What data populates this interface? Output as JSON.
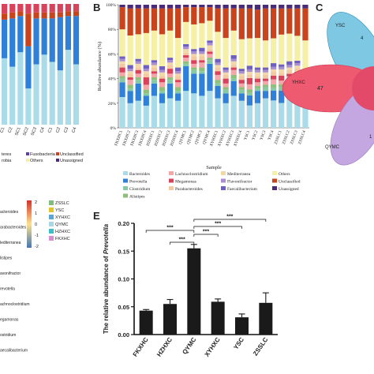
{
  "panels": {
    "b": "B",
    "c": "C",
    "e": "E"
  },
  "colors": {
    "bacteroides": "#a9dce8",
    "lachnoclostridium": "#f4a6a8",
    "mediterranea": "#f2d8a8",
    "others": "#f6f0a6",
    "prevotella": "#2f80d8",
    "megamonas": "#d9425a",
    "flavonifractor": "#a98fcf",
    "unclassified": "#c9441b",
    "clostridium": "#86c9a5",
    "parabacteroides": "#f5c9a0",
    "faecalibacterium": "#6f5fc0",
    "unassigned": "#4a2a7a",
    "alistipes": "#8ec07a",
    "fusobacteria": "#5f3fa8",
    "hm_red": "#d73027",
    "hm_yellow": "#fee08b",
    "hm_blue": "#4575b4",
    "venn_yhxc": "#ee5a6f",
    "venn_ysc": "#7ec8e3",
    "venn_qymc": "#c4a6e0",
    "venn_center": "#e34a6a",
    "bar_fill": "#1a1a1a"
  },
  "panel_a": {
    "legend": {
      "items": [
        {
          "label": "teres",
          "color_key": "fusobacteria"
        },
        {
          "label": "Fusobacteria",
          "color_key": "fusobacteria"
        },
        {
          "label": "Unclassified",
          "color_key": "unclassified"
        },
        {
          "label": "Others",
          "color_key": "others"
        },
        {
          "label": "Unassigned",
          "color_key": "unassigned"
        },
        {
          "label": "robia",
          "color_key": "fusobacteria"
        }
      ]
    },
    "x_labels": [
      "C1",
      "C2",
      "SC1",
      "SC2",
      "SC3",
      "C4",
      "C1",
      "C2",
      "C3",
      "C4"
    ],
    "heatmap": {
      "colorbar_ticks": [
        "2",
        "1",
        "0",
        "-1",
        "-2"
      ],
      "group_legend": [
        {
          "label": "ZSSLC",
          "color": "#7fbf7b"
        },
        {
          "label": "YSC",
          "color": "#e6c229"
        },
        {
          "label": "XYHXC",
          "color": "#5aa6d6"
        },
        {
          "label": "QYMC",
          "color": "#a8d8e8"
        },
        {
          "label": "HZHXC",
          "color": "#3bbfc7"
        },
        {
          "label": "FKXHC",
          "color": "#d98cd6"
        }
      ],
      "row_labels": [
        "acteroides",
        "arabacteroides",
        "lediterranea",
        "listipes",
        "avonifractor",
        "revotella",
        "achnoclostridium",
        "egamonas",
        "ostridium",
        "aecalibacterium"
      ]
    }
  },
  "chart_data": [
    {
      "type": "bar",
      "panel": "B",
      "stacked": true,
      "ylabel": "Relative abundance (%)",
      "xlabel": "Sample",
      "ylim": [
        0,
        100
      ],
      "y_ticks": [
        "0%",
        "20%",
        "40%",
        "60%",
        "80%",
        "100%"
      ],
      "categories": [
        "FKXHC1",
        "FKXHC2",
        "FKXHC3",
        "FKXHC4",
        "HZHXC1",
        "HZHXC2",
        "HZHXC3",
        "HZHXC4",
        "QYMC1",
        "QYMC2",
        "QYMC3",
        "QYMC4",
        "XYHXC1",
        "XYHXC2",
        "XYHXC3",
        "XYHXC4",
        "YSC1",
        "YSC2",
        "YSC3",
        "YSC4",
        "ZSSLC1",
        "ZSSLC2",
        "ZSSLC3",
        "ZSSLC4"
      ],
      "series": [
        {
          "name": "Bacteroides",
          "color_key": "bacteroides",
          "values": [
            25,
            20,
            22,
            18,
            26,
            20,
            24,
            22,
            30,
            28,
            26,
            30,
            24,
            20,
            26,
            22,
            18,
            20,
            24,
            22,
            20,
            24,
            22,
            20
          ]
        },
        {
          "name": "Prevotella",
          "color_key": "prevotella",
          "values": [
            12,
            10,
            14,
            8,
            10,
            8,
            12,
            6,
            20,
            16,
            18,
            22,
            10,
            8,
            12,
            6,
            8,
            10,
            6,
            8,
            10,
            8,
            12,
            6
          ]
        },
        {
          "name": "Clostridium",
          "color_key": "clostridium",
          "values": [
            3,
            2,
            3,
            2,
            3,
            2,
            3,
            2,
            2,
            3,
            2,
            3,
            2,
            3,
            2,
            3,
            2,
            2,
            3,
            2,
            3,
            2,
            3,
            2
          ]
        },
        {
          "name": "Alistipes",
          "color_key": "alistipes",
          "values": [
            2,
            3,
            2,
            3,
            2,
            3,
            2,
            3,
            2,
            2,
            3,
            2,
            3,
            2,
            3,
            2,
            3,
            2,
            2,
            3,
            2,
            3,
            2,
            3
          ]
        },
        {
          "name": "Lachnoclostridium",
          "color_key": "lachnoclostridium",
          "values": [
            3,
            4,
            3,
            4,
            3,
            4,
            3,
            4,
            3,
            3,
            4,
            3,
            4,
            3,
            4,
            3,
            4,
            3,
            3,
            4,
            3,
            4,
            3,
            4
          ]
        },
        {
          "name": "Megamonas",
          "color_key": "megamonas",
          "values": [
            4,
            2,
            3,
            6,
            2,
            3,
            4,
            2,
            2,
            3,
            2,
            2,
            3,
            4,
            2,
            3,
            5,
            3,
            2,
            3,
            4,
            2,
            3,
            2
          ]
        },
        {
          "name": "Parabacteroides",
          "color_key": "parabacteroides",
          "values": [
            3,
            3,
            2,
            3,
            3,
            2,
            3,
            3,
            2,
            3,
            3,
            2,
            3,
            3,
            2,
            3,
            3,
            2,
            3,
            3,
            2,
            3,
            3,
            2
          ]
        },
        {
          "name": "Mediterranea",
          "color_key": "mediterranea",
          "values": [
            2,
            2,
            3,
            2,
            2,
            3,
            2,
            2,
            3,
            2,
            2,
            3,
            2,
            2,
            3,
            2,
            2,
            3,
            2,
            2,
            3,
            2,
            2,
            3
          ]
        },
        {
          "name": "Flavonifractor",
          "color_key": "flavonifractor",
          "values": [
            2,
            2,
            2,
            2,
            2,
            2,
            2,
            2,
            2,
            2,
            2,
            2,
            2,
            2,
            2,
            2,
            2,
            2,
            2,
            2,
            2,
            2,
            2,
            2
          ]
        },
        {
          "name": "Faecalibacterium",
          "color_key": "faecalibacterium",
          "values": [
            2,
            3,
            2,
            3,
            2,
            3,
            2,
            3,
            2,
            2,
            3,
            2,
            3,
            2,
            3,
            2,
            3,
            2,
            2,
            3,
            2,
            3,
            2,
            3
          ]
        },
        {
          "name": "Others",
          "color_key": "others",
          "values": [
            22,
            24,
            20,
            26,
            24,
            26,
            22,
            24,
            18,
            20,
            20,
            16,
            22,
            24,
            20,
            24,
            22,
            24,
            22,
            20,
            24,
            22,
            20,
            24
          ]
        },
        {
          "name": "Unclassified",
          "color_key": "unclassified",
          "values": [
            18,
            22,
            21,
            20,
            18,
            21,
            18,
            24,
            12,
            14,
            13,
            11,
            19,
            24,
            18,
            25,
            24,
            23,
            26,
            24,
            21,
            20,
            22,
            26
          ]
        },
        {
          "name": "Unassigned",
          "color_key": "unassigned",
          "values": [
            2,
            3,
            3,
            3,
            3,
            3,
            3,
            3,
            2,
            2,
            2,
            2,
            3,
            3,
            3,
            3,
            3,
            4,
            3,
            3,
            3,
            3,
            3,
            3
          ]
        }
      ]
    },
    {
      "type": "bar",
      "panel": "E",
      "ylabel_prefix": "The relative abundance of ",
      "ylabel_italic": "Prevotella",
      "ylim": [
        0,
        0.2
      ],
      "y_ticks": [
        "0.00",
        "0.05",
        "0.10",
        "0.15",
        "0.20"
      ],
      "categories": [
        "FKXHC",
        "HZHXC",
        "QYMC",
        "XYHXC",
        "YSC",
        "ZSSLC"
      ],
      "values": [
        0.043,
        0.055,
        0.155,
        0.059,
        0.031,
        0.057
      ],
      "errors": [
        0.002,
        0.008,
        0.007,
        0.005,
        0.006,
        0.018
      ],
      "significance": [
        {
          "from": "HZHXC",
          "to": "QYMC",
          "label": "***"
        },
        {
          "from": "FKXHC",
          "to": "QYMC",
          "label": "***"
        },
        {
          "from": "QYMC",
          "to": "XYHXC",
          "label": "***"
        },
        {
          "from": "QYMC",
          "to": "YSC",
          "label": "***"
        },
        {
          "from": "QYMC",
          "to": "ZSSLC",
          "label": "***"
        }
      ]
    }
  ],
  "venn": {
    "labels": {
      "ysc": "YSC",
      "yhxc": "YHXC",
      "qymc": "QYMC"
    },
    "values": {
      "ysc_frag": "4",
      "yhxc_only": "47",
      "qymc_frag": "1"
    }
  }
}
